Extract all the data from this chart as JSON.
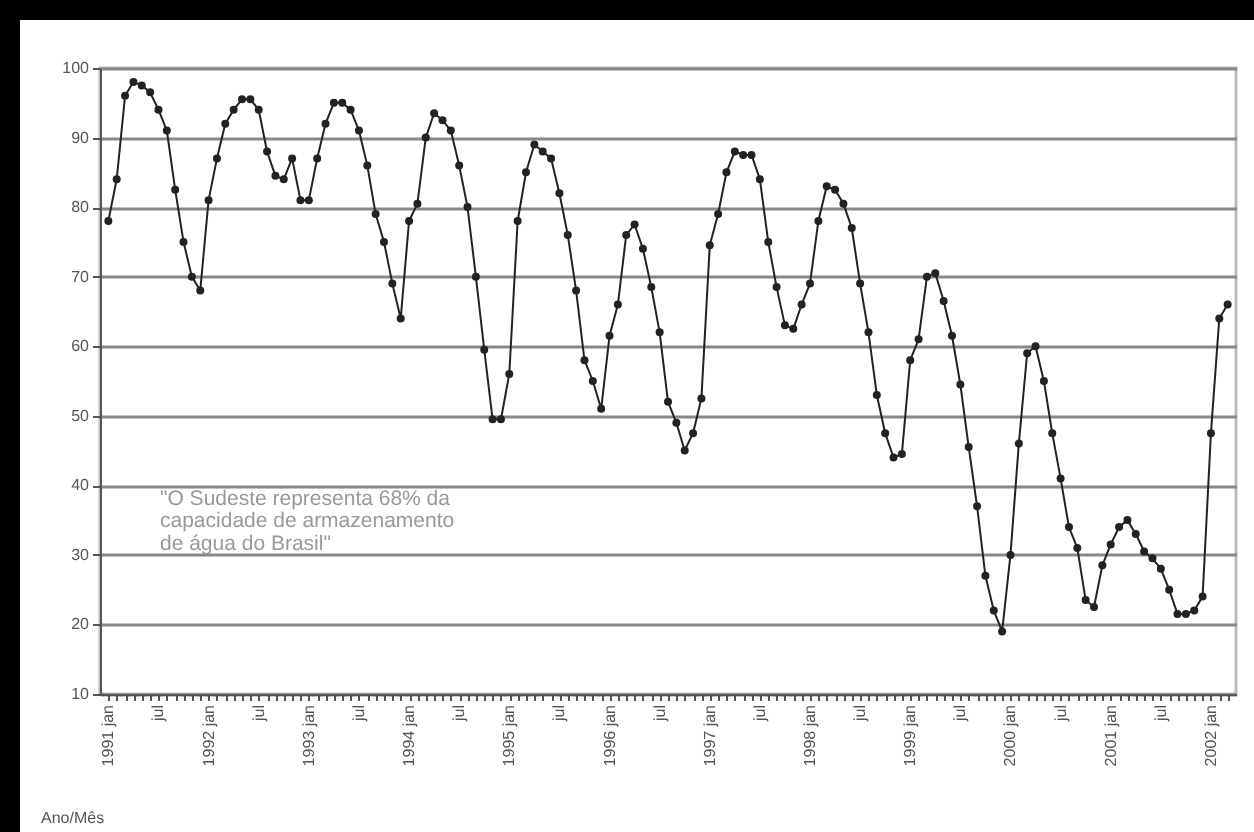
{
  "chart_data": {
    "type": "line",
    "xlabel": "Ano/Mês",
    "categories": [
      "1991 jan",
      null,
      null,
      null,
      null,
      null,
      "jul",
      null,
      null,
      null,
      null,
      null,
      "1992 jan",
      null,
      null,
      null,
      null,
      null,
      "jul",
      null,
      null,
      null,
      null,
      null,
      "1993 jan",
      null,
      null,
      null,
      null,
      null,
      "jul",
      null,
      null,
      null,
      null,
      null,
      "1994 jan",
      null,
      null,
      null,
      null,
      null,
      "jul",
      null,
      null,
      null,
      null,
      null,
      "1995 jan",
      null,
      null,
      null,
      null,
      null,
      "jul",
      null,
      null,
      null,
      null,
      null,
      "1996 jan",
      null,
      null,
      null,
      null,
      null,
      "jul",
      null,
      null,
      null,
      null,
      null,
      "1997 jan",
      null,
      null,
      null,
      null,
      null,
      "jul",
      null,
      null,
      null,
      null,
      null,
      "1998 jan",
      null,
      null,
      null,
      null,
      null,
      "jul",
      null,
      null,
      null,
      null,
      null,
      "1999 jan",
      null,
      null,
      null,
      null,
      null,
      "jul",
      null,
      null,
      null,
      null,
      null,
      "2000 jan",
      null,
      null,
      null,
      null,
      null,
      "jul",
      null,
      null,
      null,
      null,
      null,
      "2001 jan",
      null,
      null,
      null,
      null,
      null,
      "jul",
      null,
      null,
      null,
      null,
      null,
      "2002 jan",
      null,
      null
    ],
    "series": [
      {
        "color": "#222222",
        "values": [
          78,
          84,
          96,
          98,
          97.5,
          96.5,
          94,
          91,
          82.5,
          75,
          70,
          68,
          81,
          87,
          92,
          94,
          95.5,
          95.5,
          94,
          88,
          84.5,
          84,
          87,
          81,
          81,
          87,
          92,
          95,
          95,
          94,
          91,
          86,
          79,
          75,
          69,
          64,
          78,
          80.5,
          90,
          93.5,
          92.5,
          91,
          86,
          80,
          70,
          59.5,
          49.5,
          49.5,
          56,
          78,
          85,
          89,
          88,
          87,
          82,
          76,
          68,
          58,
          55,
          51,
          61.5,
          66,
          76,
          77.5,
          74,
          68.5,
          62,
          52,
          49,
          45,
          47.5,
          52.5,
          74.5,
          79,
          85,
          88,
          87.5,
          87.5,
          84,
          75,
          68.5,
          63,
          62.5,
          66,
          69,
          78,
          83,
          82.5,
          80.5,
          77,
          69,
          62,
          53,
          47.5,
          44,
          44.5,
          58,
          61,
          70,
          70.5,
          66.5,
          61.5,
          54.5,
          45.5,
          37,
          27,
          22,
          19,
          30,
          46,
          59,
          60,
          55,
          47.5,
          41,
          34,
          31,
          23.5,
          22.5,
          28.5,
          31.5,
          34,
          35,
          33,
          30.5,
          29.5,
          28,
          25,
          21.5,
          21.5,
          22,
          24,
          47.5,
          64,
          66
        ]
      }
    ],
    "ylim": [
      10,
      100
    ],
    "yticks": [
      10,
      20,
      30,
      40,
      50,
      60,
      70,
      80,
      90,
      100
    ],
    "grid": "y",
    "marker": "circle",
    "annotations": [
      "\"O Sudeste representa 68% da\ncapacidade de armazenamento\nde água do Brasil\""
    ]
  }
}
